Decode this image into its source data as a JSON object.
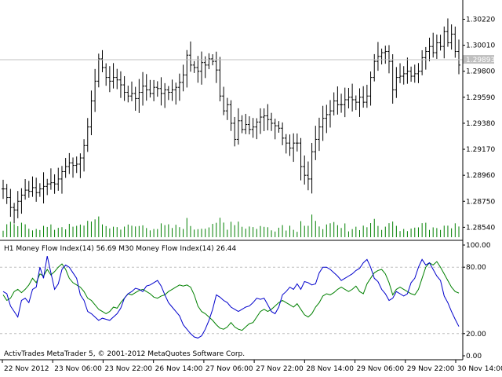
{
  "terminal": {
    "watermark": "ActivTrades MetaTrader 5, © 2001-2012 MetaQuotes Software Corp."
  },
  "colors": {
    "bar": "#000000",
    "volume": "#008000",
    "mfi_h1": "#008000",
    "mfi_m30": "#0000cc",
    "grid_dash": "#bfbfbf",
    "price_line": "#c0c0c0",
    "price_label_bg": "#c0c0c0"
  },
  "chart_data": [
    {
      "type": "ohlc",
      "panel": "main",
      "current_price": 1.29893,
      "current_price_label": "1.29893",
      "price_ticks": [
        "1.30220",
        "1.30010",
        "1.29800",
        "1.29590",
        "1.29380",
        "1.29170",
        "1.28960",
        "1.28750",
        "1.28540"
      ],
      "tick_values": [
        1.3022,
        1.3001,
        1.298,
        1.2959,
        1.2938,
        1.2917,
        1.2896,
        1.2875,
        1.2854
      ],
      "ylim": [
        1.2846,
        1.3035
      ],
      "time_labels": [
        "22 Nov 2012",
        "23 Nov 06:00",
        "23 Nov 22:00",
        "26 Nov 14:00",
        "27 Nov 06:00",
        "27 Nov 22:00",
        "28 Nov 14:00",
        "29 Nov 06:00",
        "29 Nov 22:00",
        "30 Nov 14:00"
      ],
      "closes": [
        1.2885,
        1.2878,
        1.287,
        1.2868,
        1.2875,
        1.288,
        1.2884,
        1.2883,
        1.2886,
        1.2882,
        1.2885,
        1.2887,
        1.2889,
        1.289,
        1.2889,
        1.2893,
        1.2899,
        1.2903,
        1.2906,
        1.2904,
        1.2905,
        1.291,
        1.292,
        1.2935,
        1.2956,
        1.2972,
        1.299,
        1.2983,
        1.2975,
        1.2972,
        1.2975,
        1.2973,
        1.2969,
        1.2963,
        1.296,
        1.2962,
        1.2958,
        1.2963,
        1.2968,
        1.2965,
        1.2962,
        1.2967,
        1.2966,
        1.2962,
        1.2965,
        1.2963,
        1.2965,
        1.2967,
        1.2971,
        1.2977,
        1.2993,
        1.2985,
        1.2983,
        1.298,
        1.2987,
        1.2985,
        1.299,
        1.2988,
        1.2981,
        1.296,
        1.2948,
        1.2953,
        1.2938,
        1.2925,
        1.294,
        1.2933,
        1.2937,
        1.2933,
        1.2935,
        1.2939,
        1.2943,
        1.2944,
        1.2941,
        1.2938,
        1.2936,
        1.2934,
        1.2926,
        1.2922,
        1.2918,
        1.2922,
        1.2922,
        1.2903,
        1.2896,
        1.2893,
        1.2915,
        1.2925,
        1.2935,
        1.2942,
        1.2945,
        1.2948,
        1.2956,
        1.2953,
        1.2953,
        1.2957,
        1.2959,
        1.2957,
        1.2955,
        1.2959,
        1.2955,
        1.296,
        1.2975,
        1.2988,
        1.2992,
        1.2995,
        1.2996,
        1.2988,
        1.2965,
        1.2975,
        1.2976,
        1.2978,
        1.298,
        1.2976,
        1.2978,
        1.298,
        1.2991,
        1.2996,
        1.3,
        1.2995,
        1.3003,
        1.3,
        1.3012,
        1.3003,
        1.301,
        1.2996,
        1.2985
      ]
    },
    {
      "type": "line",
      "panel": "indicator",
      "label": "H1 Money Flow Index(14) 56.69 M30 Money Flow Index(14) 26.44",
      "series": [
        {
          "name": "H1 Money Flow Index(14)",
          "last": 56.69,
          "values": [
            55,
            50,
            52,
            58,
            60,
            57,
            60,
            64,
            70,
            66,
            74,
            72,
            78,
            73,
            76,
            80,
            83,
            78,
            70,
            66,
            64,
            62,
            58,
            52,
            50,
            46,
            42,
            40,
            38,
            40,
            44,
            43,
            48,
            52,
            56,
            55,
            57,
            59,
            60,
            58,
            56,
            53,
            52,
            54,
            55,
            58,
            60,
            62,
            64,
            63,
            64,
            62,
            55,
            45,
            40,
            38,
            35,
            32,
            28,
            25,
            24,
            26,
            30,
            26,
            24,
            23,
            26,
            29,
            30,
            35,
            40,
            42,
            40,
            42,
            45,
            48,
            50,
            48,
            46,
            44,
            47,
            42,
            37,
            35,
            38,
            44,
            48,
            54,
            56,
            55,
            57,
            60,
            62,
            60,
            58,
            60,
            63,
            58,
            56,
            65,
            70,
            75,
            77,
            78,
            74,
            66,
            55,
            60,
            62,
            60,
            58,
            56,
            55,
            60,
            70,
            80,
            84,
            82,
            85,
            80,
            74,
            68,
            62,
            58,
            56.69
          ]
        },
        {
          "name": "M30 Money Flow Index(14)",
          "last": 26.44,
          "values": [
            58,
            56,
            45,
            40,
            35,
            50,
            52,
            48,
            60,
            62,
            80,
            70,
            90,
            75,
            60,
            65,
            78,
            82,
            80,
            75,
            70,
            55,
            50,
            40,
            38,
            35,
            32,
            34,
            33,
            32,
            35,
            38,
            43,
            52,
            56,
            58,
            61,
            60,
            58,
            63,
            64,
            66,
            68,
            63,
            55,
            48,
            44,
            40,
            36,
            28,
            24,
            20,
            17,
            16,
            18,
            24,
            32,
            42,
            55,
            53,
            50,
            48,
            44,
            42,
            40,
            42,
            44,
            45,
            48,
            52,
            51,
            52,
            46,
            40,
            38,
            44,
            55,
            58,
            62,
            60,
            65,
            60,
            67,
            66,
            64,
            65,
            75,
            80,
            80,
            78,
            75,
            72,
            68,
            70,
            72,
            74,
            77,
            79,
            84,
            87,
            80,
            70,
            67,
            60,
            56,
            50,
            52,
            58,
            56,
            54,
            56,
            66,
            70,
            80,
            87,
            82,
            84,
            78,
            72,
            68,
            54,
            48,
            40,
            33,
            26.44
          ]
        }
      ],
      "level_labels": [
        "100.00",
        "80.00",
        "20.00",
        "0.00"
      ],
      "levels": [
        100,
        80,
        20,
        0
      ],
      "dashed_levels": [
        80,
        20
      ],
      "ylim": [
        0,
        100
      ]
    }
  ]
}
